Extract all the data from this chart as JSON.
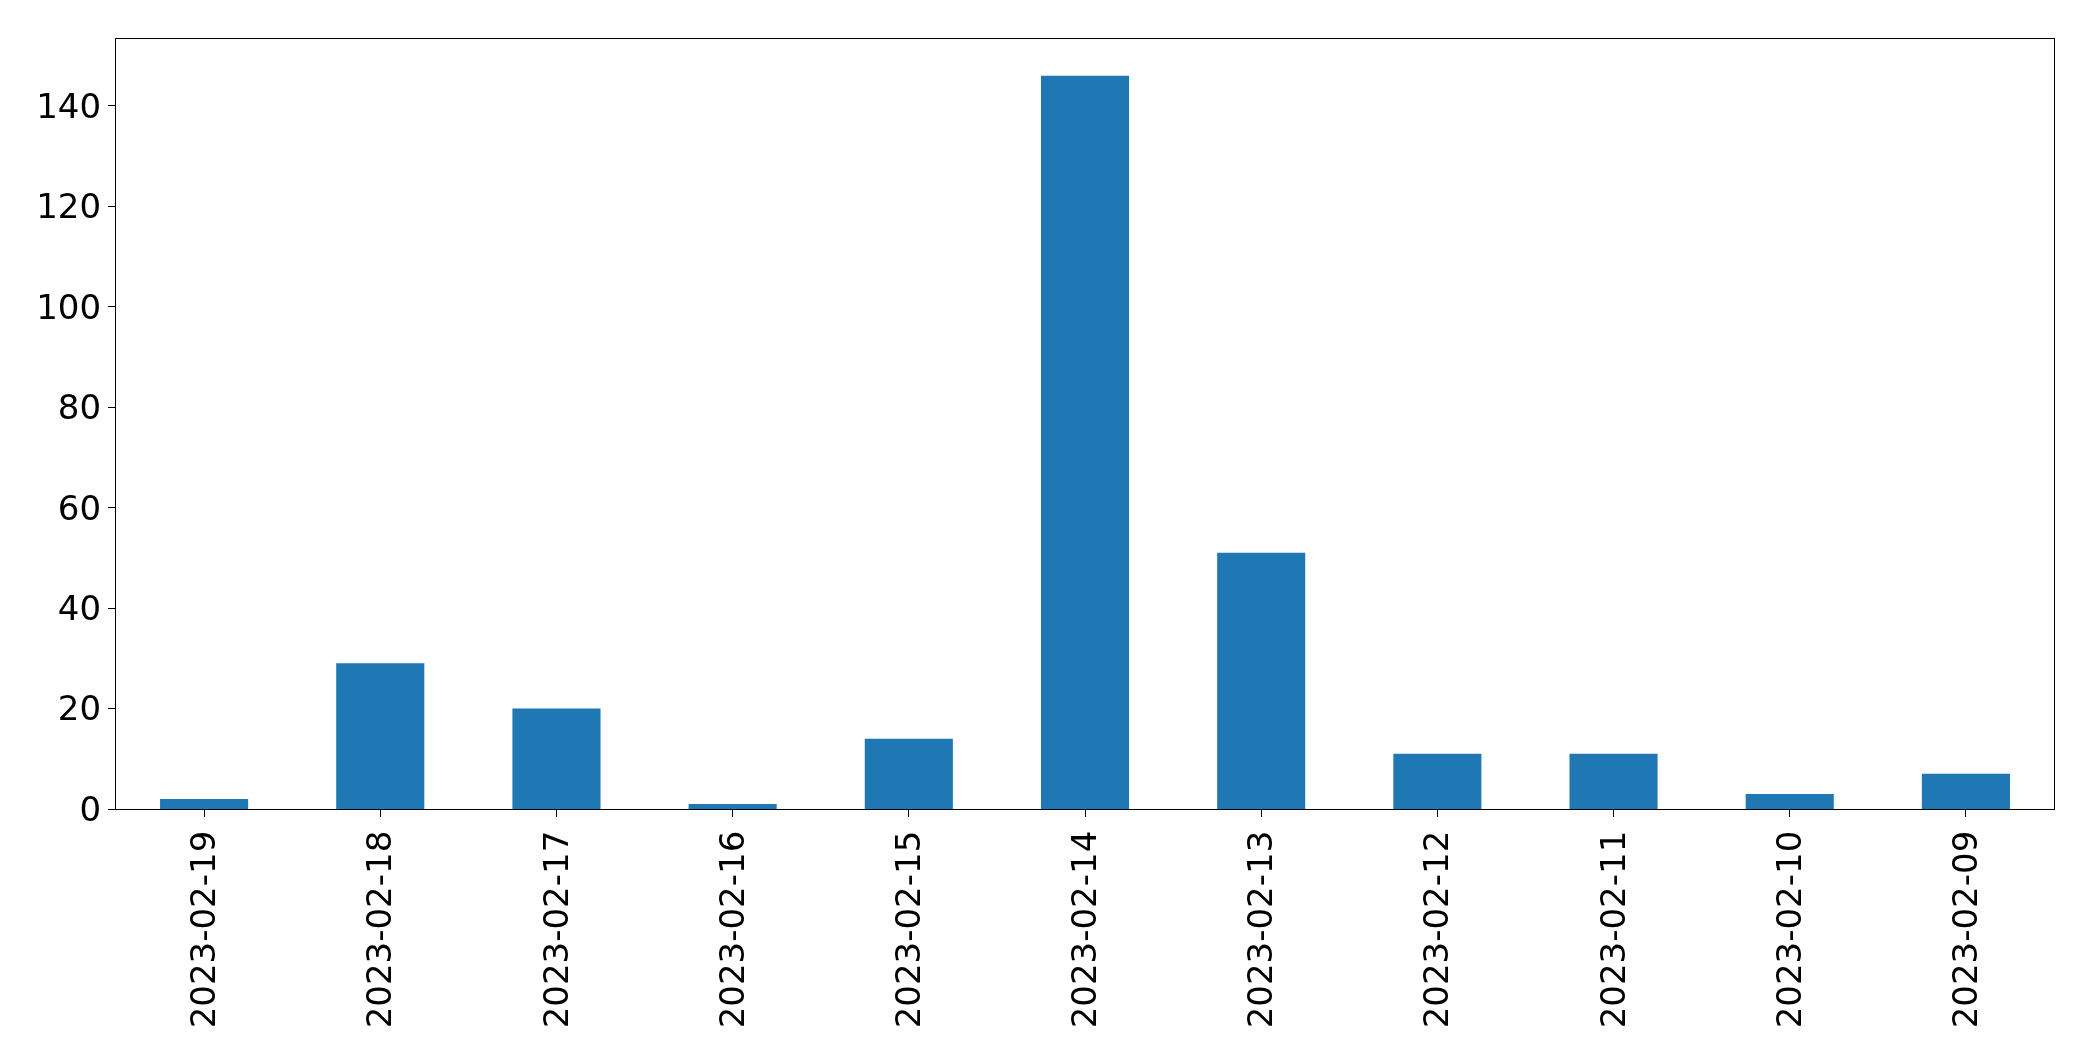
{
  "chart_data": {
    "type": "bar",
    "categories": [
      "2023-02-19",
      "2023-02-18",
      "2023-02-17",
      "2023-02-16",
      "2023-02-15",
      "2023-02-14",
      "2023-02-13",
      "2023-02-12",
      "2023-02-11",
      "2023-02-10",
      "2023-02-09"
    ],
    "values": [
      2,
      29,
      20,
      1,
      14,
      146,
      51,
      11,
      11,
      3,
      7
    ],
    "color": "#1f77b4",
    "ylim": [
      0,
      153.3
    ],
    "yticks": [
      0,
      20,
      40,
      60,
      80,
      100,
      120,
      140
    ]
  }
}
